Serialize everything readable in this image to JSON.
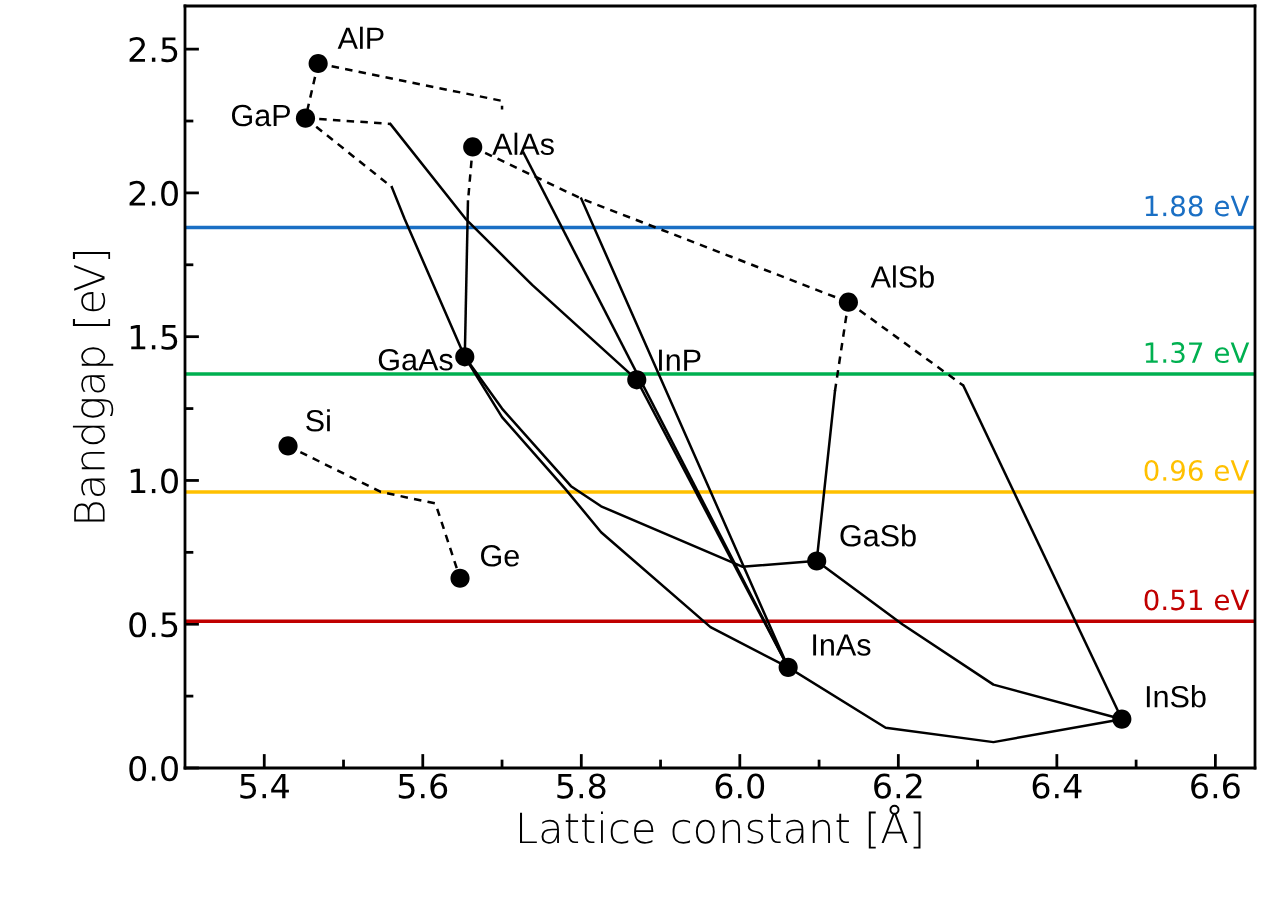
{
  "chart_data": {
    "type": "scatter",
    "xlabel": "Lattice constant [Å]",
    "ylabel": "Bandgap [eV]",
    "xlim": [
      5.3,
      6.65
    ],
    "ylim": [
      0,
      2.65
    ],
    "xticks": [
      5.4,
      5.6,
      5.8,
      {
        "value": 6,
        "label": "6.0"
      },
      6.2,
      6.4,
      6.6
    ],
    "yticks": [
      {
        "value": 0,
        "label": "0.0"
      },
      0.5,
      {
        "value": 1,
        "label": "1.0"
      },
      1.5,
      {
        "value": 2,
        "label": "2.0"
      },
      2.5
    ],
    "grid": false,
    "series": [
      {
        "color": "#000000",
        "marker": "circle",
        "x": [
          5.43,
          5.647,
          5.468,
          5.452,
          5.663,
          5.653,
          5.87,
          6.137,
          6.097,
          6.061,
          6.482
        ],
        "values": [
          1.12,
          0.66,
          2.45,
          2.26,
          2.16,
          1.43,
          1.35,
          1.62,
          0.72,
          0.35,
          0.17
        ]
      },
      {
        "type": "line",
        "color": "#000000",
        "line_style": "dashed",
        "x": [
          5.468,
          5.452
        ],
        "values": [
          2.45,
          2.26
        ]
      },
      {
        "type": "line",
        "color": "#000000",
        "line_style": "dashed",
        "x": [
          5.468,
          5.7,
          5.7
        ],
        "values": [
          2.45,
          2.32,
          2.29
        ]
      },
      {
        "type": "line",
        "color": "#000000",
        "line_style": "dashed",
        "x": [
          5.452,
          5.559
        ],
        "values": [
          2.26,
          2.24
        ]
      },
      {
        "type": "line",
        "color": "#000000",
        "line_style": "solid",
        "x": [
          5.559,
          5.654,
          5.738,
          5.87
        ],
        "values": [
          2.24,
          1.91,
          1.68,
          1.35
        ]
      },
      {
        "type": "line",
        "color": "#000000",
        "line_style": "dashed",
        "x": [
          5.452,
          5.561
        ],
        "values": [
          2.26,
          2.02
        ]
      },
      {
        "type": "line",
        "color": "#000000",
        "line_style": "solid",
        "x": [
          5.561,
          5.577,
          5.653
        ],
        "values": [
          2.02,
          1.91,
          1.43
        ]
      },
      {
        "type": "line",
        "color": "#000000",
        "line_style": "dashed",
        "x": [
          5.663,
          5.657
        ],
        "values": [
          2.16,
          1.97
        ]
      },
      {
        "type": "line",
        "color": "#000000",
        "line_style": "solid",
        "x": [
          5.657,
          5.653
        ],
        "values": [
          1.97,
          1.43
        ]
      },
      {
        "type": "line",
        "color": "#000000",
        "line_style": "dashed",
        "x": [
          5.663,
          5.8,
          6.137
        ],
        "values": [
          2.16,
          1.98,
          1.62
        ]
      },
      {
        "type": "line",
        "color": "#000000",
        "line_style": "dashed",
        "x": [
          6.137,
          6.282
        ],
        "values": [
          1.62,
          1.33
        ]
      },
      {
        "type": "line",
        "color": "#000000",
        "line_style": "solid",
        "x": [
          6.282,
          6.482
        ],
        "values": [
          1.33,
          0.17
        ]
      },
      {
        "type": "line",
        "color": "#000000",
        "line_style": "dashed",
        "x": [
          6.137,
          6.12
        ],
        "values": [
          1.62,
          1.31
        ]
      },
      {
        "type": "line",
        "color": "#000000",
        "line_style": "solid",
        "x": [
          6.12,
          6.097
        ],
        "values": [
          1.31,
          0.72
        ]
      },
      {
        "type": "line",
        "color": "#000000",
        "line_style": "dashed",
        "x": [
          5.43,
          5.547,
          5.616,
          5.647
        ],
        "values": [
          1.12,
          0.96,
          0.92,
          0.66
        ]
      },
      {
        "type": "line",
        "color": "#000000",
        "line_style": "solid",
        "x": [
          5.727,
          6.061
        ],
        "values": [
          2.14,
          0.35
        ]
      },
      {
        "type": "line",
        "color": "#000000",
        "line_style": "solid",
        "x": [
          5.8,
          6.061
        ],
        "values": [
          1.98,
          0.35
        ]
      },
      {
        "type": "line",
        "color": "#000000",
        "line_style": "solid",
        "x": [
          5.87,
          6.061
        ],
        "values": [
          1.35,
          0.35
        ]
      },
      {
        "type": "line",
        "color": "#000000",
        "line_style": "solid",
        "x": [
          5.653,
          5.7,
          5.787,
          5.825,
          6.003,
          6.097
        ],
        "values": [
          1.43,
          1.25,
          0.98,
          0.91,
          0.7,
          0.72
        ]
      },
      {
        "type": "line",
        "color": "#000000",
        "line_style": "solid",
        "x": [
          5.653,
          5.7,
          5.78,
          5.825,
          5.963,
          6.061
        ],
        "values": [
          1.43,
          1.22,
          0.97,
          0.82,
          0.49,
          0.35
        ]
      },
      {
        "type": "line",
        "color": "#000000",
        "line_style": "solid",
        "x": [
          6.097,
          6.205,
          6.32,
          6.482
        ],
        "values": [
          0.72,
          0.5,
          0.29,
          0.17
        ]
      },
      {
        "type": "line",
        "color": "#000000",
        "line_style": "solid",
        "x": [
          6.061,
          6.184,
          6.32,
          6.482
        ],
        "values": [
          0.35,
          0.14,
          0.09,
          0.17
        ]
      }
    ],
    "annotations": [
      {
        "text": "Si",
        "x": 5.43,
        "y": 1.12
      },
      {
        "text": "Ge",
        "x": 5.647,
        "y": 0.66
      },
      {
        "text": "AlP",
        "x": 5.468,
        "y": 2.45
      },
      {
        "text": "GaP",
        "x": 5.452,
        "y": 2.26
      },
      {
        "text": "AlAs",
        "x": 5.663,
        "y": 2.16
      },
      {
        "text": "GaAs",
        "x": 5.653,
        "y": 1.43
      },
      {
        "text": "InP",
        "x": 5.87,
        "y": 1.35
      },
      {
        "text": "AlSb",
        "x": 6.137,
        "y": 1.62
      },
      {
        "text": "GaSb",
        "x": 6.097,
        "y": 0.72
      },
      {
        "text": "InAs",
        "x": 6.061,
        "y": 0.35
      },
      {
        "text": "InSb",
        "x": 6.482,
        "y": 0.17
      }
    ],
    "ref_lines": [
      {
        "axis": "y",
        "value": 1.88,
        "label": "1.88 eV",
        "color": "#1a6fc4"
      },
      {
        "axis": "y",
        "value": 1.37,
        "label": "1.37 eV",
        "color": "#00b050"
      },
      {
        "axis": "y",
        "value": 0.96,
        "label": "0.96 eV",
        "color": "#ffc000"
      },
      {
        "axis": "y",
        "value": 0.51,
        "label": "0.51 eV",
        "color": "#c00000"
      }
    ]
  }
}
